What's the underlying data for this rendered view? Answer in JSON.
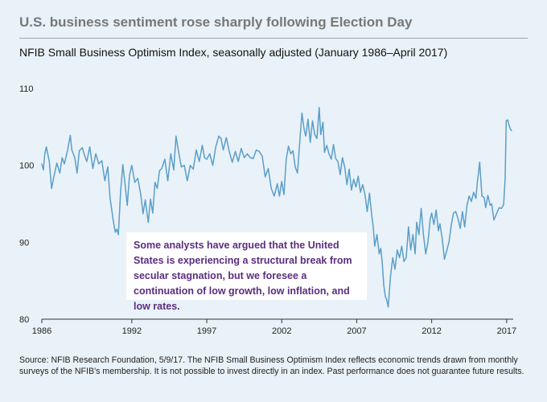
{
  "title": "U.S. business sentiment rose sharply following Election Day",
  "subtitle": "NFIB Small Business Optimism Index, seasonally adjusted (January 1986–April 2017)",
  "callout": "Some analysts have argued that the United States is experiencing a structural break from secular stagnation, but we foresee a continuation of low growth, low inflation, and low rates.",
  "source": "Source: NFIB Research Foundation, 5/9/17. The NFIB Small Business Optimism Index reflects economic trends drawn from monthly surveys of the NFIB’s membership. It is not possible to invest directly in an index. Past performance does not guarantee future results.",
  "colors": {
    "line": "#5b9ec9",
    "background": "#e9f2f8",
    "callout_text": "#5b2d80"
  },
  "chart_data": {
    "type": "line",
    "title": "NFIB Small Business Optimism Index, seasonally adjusted (January 1986–April 2017)",
    "xlabel": "",
    "ylabel": "",
    "xlim": [
      1986.0,
      2017.33
    ],
    "ylim": [
      80,
      110
    ],
    "yticks": [
      80,
      90,
      100,
      110
    ],
    "xticks": [
      1986,
      1992,
      1997,
      2002,
      2007,
      2012,
      2017
    ],
    "grid": false,
    "series": [
      {
        "name": "NFIB Small Business Optimism Index",
        "points": [
          [
            1986.0,
            100.2
          ],
          [
            1986.1,
            99.4
          ],
          [
            1986.2,
            101.5
          ],
          [
            1986.3,
            102.4
          ],
          [
            1986.5,
            100.5
          ],
          [
            1986.65,
            97.0
          ],
          [
            1986.8,
            98.5
          ],
          [
            1987.0,
            100.3
          ],
          [
            1987.2,
            99.0
          ],
          [
            1987.35,
            101.0
          ],
          [
            1987.5,
            100.2
          ],
          [
            1987.7,
            101.8
          ],
          [
            1987.9,
            103.9
          ],
          [
            1988.0,
            102.0
          ],
          [
            1988.2,
            101.0
          ],
          [
            1988.35,
            99.0
          ],
          [
            1988.5,
            101.9
          ],
          [
            1988.7,
            102.3
          ],
          [
            1988.9,
            101.0
          ],
          [
            1989.0,
            100.5
          ],
          [
            1989.2,
            102.4
          ],
          [
            1989.4,
            99.6
          ],
          [
            1989.6,
            101.5
          ],
          [
            1989.8,
            100.2
          ],
          [
            1990.0,
            100.6
          ],
          [
            1990.2,
            98.0
          ],
          [
            1990.4,
            99.8
          ],
          [
            1990.55,
            95.8
          ],
          [
            1990.75,
            93.0
          ],
          [
            1990.9,
            91.3
          ],
          [
            1991.0,
            91.7
          ],
          [
            1991.1,
            91.0
          ],
          [
            1991.25,
            96.5
          ],
          [
            1991.4,
            100.1
          ],
          [
            1991.55,
            97.5
          ],
          [
            1991.7,
            94.8
          ],
          [
            1991.85,
            98.7
          ],
          [
            1992.0,
            100.0
          ],
          [
            1992.2,
            97.8
          ],
          [
            1992.4,
            98.3
          ],
          [
            1992.6,
            96.2
          ],
          [
            1992.75,
            93.7
          ],
          [
            1992.9,
            95.5
          ],
          [
            1993.0,
            94.0
          ],
          [
            1993.1,
            92.6
          ],
          [
            1993.25,
            95.6
          ],
          [
            1993.4,
            93.8
          ],
          [
            1993.55,
            97.8
          ],
          [
            1993.7,
            97.0
          ],
          [
            1993.85,
            99.3
          ],
          [
            1994.0,
            99.6
          ],
          [
            1994.2,
            100.8
          ],
          [
            1994.4,
            98.0
          ],
          [
            1994.6,
            101.5
          ],
          [
            1994.8,
            99.4
          ],
          [
            1994.95,
            103.8
          ],
          [
            1995.1,
            102.0
          ],
          [
            1995.3,
            99.8
          ],
          [
            1995.5,
            100.0
          ],
          [
            1995.7,
            98.0
          ],
          [
            1995.9,
            100.0
          ],
          [
            1996.1,
            99.5
          ],
          [
            1996.3,
            102.0
          ],
          [
            1996.5,
            100.5
          ],
          [
            1996.7,
            102.6
          ],
          [
            1996.85,
            101.0
          ],
          [
            1997.0,
            100.8
          ],
          [
            1997.2,
            101.5
          ],
          [
            1997.4,
            100.0
          ],
          [
            1997.6,
            102.4
          ],
          [
            1997.8,
            103.8
          ],
          [
            1997.95,
            103.5
          ],
          [
            1998.1,
            102.0
          ],
          [
            1998.3,
            103.6
          ],
          [
            1998.5,
            101.8
          ],
          [
            1998.7,
            100.4
          ],
          [
            1998.9,
            101.8
          ],
          [
            1999.1,
            100.5
          ],
          [
            1999.3,
            102.2
          ],
          [
            1999.5,
            101.0
          ],
          [
            1999.7,
            101.5
          ],
          [
            1999.9,
            101.0
          ],
          [
            2000.1,
            100.9
          ],
          [
            2000.3,
            102.0
          ],
          [
            2000.5,
            101.8
          ],
          [
            2000.7,
            101.2
          ],
          [
            2000.9,
            98.5
          ],
          [
            2001.1,
            99.6
          ],
          [
            2001.3,
            97.0
          ],
          [
            2001.5,
            96.0
          ],
          [
            2001.7,
            97.6
          ],
          [
            2001.85,
            96.0
          ],
          [
            2002.0,
            97.9
          ],
          [
            2002.15,
            96.2
          ],
          [
            2002.3,
            100.8
          ],
          [
            2002.45,
            102.5
          ],
          [
            2002.6,
            101.5
          ],
          [
            2002.75,
            101.9
          ],
          [
            2002.9,
            99.8
          ],
          [
            2003.05,
            99.0
          ],
          [
            2003.2,
            103.0
          ],
          [
            2003.35,
            106.8
          ],
          [
            2003.5,
            104.6
          ],
          [
            2003.6,
            103.8
          ],
          [
            2003.75,
            106.0
          ],
          [
            2003.9,
            103.0
          ],
          [
            2004.05,
            105.8
          ],
          [
            2004.2,
            104.0
          ],
          [
            2004.35,
            103.5
          ],
          [
            2004.5,
            107.5
          ],
          [
            2004.6,
            104.0
          ],
          [
            2004.75,
            105.6
          ],
          [
            2004.85,
            101.7
          ],
          [
            2005.0,
            102.6
          ],
          [
            2005.15,
            101.5
          ],
          [
            2005.3,
            100.8
          ],
          [
            2005.45,
            102.7
          ],
          [
            2005.6,
            100.9
          ],
          [
            2005.75,
            100.5
          ],
          [
            2005.9,
            98.8
          ],
          [
            2006.05,
            101.0
          ],
          [
            2006.2,
            99.8
          ],
          [
            2006.35,
            97.5
          ],
          [
            2006.5,
            99.5
          ],
          [
            2006.65,
            96.8
          ],
          [
            2006.8,
            98.2
          ],
          [
            2006.95,
            97.2
          ],
          [
            2007.1,
            98.6
          ],
          [
            2007.25,
            96.5
          ],
          [
            2007.4,
            97.5
          ],
          [
            2007.55,
            96.2
          ],
          [
            2007.7,
            94.0
          ],
          [
            2007.85,
            96.4
          ],
          [
            2008.0,
            93.5
          ],
          [
            2008.1,
            92.0
          ],
          [
            2008.2,
            89.5
          ],
          [
            2008.35,
            91.0
          ],
          [
            2008.5,
            88.5
          ],
          [
            2008.6,
            89.2
          ],
          [
            2008.7,
            87.5
          ],
          [
            2008.8,
            84.5
          ],
          [
            2008.9,
            83.0
          ],
          [
            2009.0,
            82.5
          ],
          [
            2009.1,
            81.6
          ],
          [
            2009.25,
            85.5
          ],
          [
            2009.4,
            88.0
          ],
          [
            2009.55,
            86.5
          ],
          [
            2009.7,
            89.0
          ],
          [
            2009.85,
            88.0
          ],
          [
            2010.0,
            89.5
          ],
          [
            2010.15,
            87.5
          ],
          [
            2010.3,
            88.0
          ],
          [
            2010.45,
            92.0
          ],
          [
            2010.6,
            89.0
          ],
          [
            2010.75,
            91.0
          ],
          [
            2010.9,
            88.5
          ],
          [
            2011.0,
            92.6
          ],
          [
            2011.15,
            91.0
          ],
          [
            2011.3,
            94.4
          ],
          [
            2011.45,
            91.0
          ],
          [
            2011.6,
            88.5
          ],
          [
            2011.75,
            90.0
          ],
          [
            2011.9,
            93.0
          ],
          [
            2012.0,
            93.8
          ],
          [
            2012.15,
            92.3
          ],
          [
            2012.3,
            94.2
          ],
          [
            2012.45,
            91.5
          ],
          [
            2012.55,
            92.4
          ],
          [
            2012.7,
            90.5
          ],
          [
            2012.85,
            87.8
          ],
          [
            2013.0,
            88.9
          ],
          [
            2013.15,
            90.0
          ],
          [
            2013.3,
            92.2
          ],
          [
            2013.45,
            93.8
          ],
          [
            2013.6,
            94.0
          ],
          [
            2013.75,
            93.1
          ],
          [
            2013.9,
            91.8
          ],
          [
            2014.05,
            94.0
          ],
          [
            2014.2,
            92.0
          ],
          [
            2014.35,
            94.8
          ],
          [
            2014.5,
            96.0
          ],
          [
            2014.65,
            95.3
          ],
          [
            2014.8,
            96.5
          ],
          [
            2014.95,
            95.7
          ],
          [
            2015.05,
            97.9
          ],
          [
            2015.2,
            100.4
          ],
          [
            2015.35,
            96.0
          ],
          [
            2015.5,
            95.8
          ],
          [
            2015.6,
            94.5
          ],
          [
            2015.75,
            96.1
          ],
          [
            2015.9,
            94.8
          ],
          [
            2016.0,
            95.0
          ],
          [
            2016.15,
            92.9
          ],
          [
            2016.3,
            93.6
          ],
          [
            2016.5,
            94.5
          ],
          [
            2016.65,
            94.4
          ],
          [
            2016.8,
            94.9
          ],
          [
            2016.9,
            98.4
          ],
          [
            2016.97,
            105.8
          ],
          [
            2017.08,
            105.9
          ],
          [
            2017.15,
            105.3
          ],
          [
            2017.25,
            104.7
          ],
          [
            2017.33,
            104.5
          ]
        ]
      }
    ]
  }
}
